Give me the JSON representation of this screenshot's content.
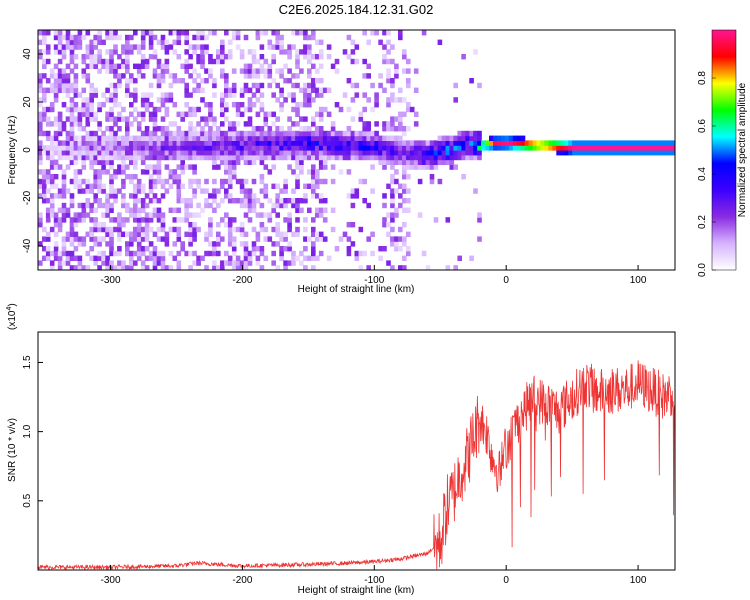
{
  "chart_data": [
    {
      "type": "heatmap",
      "title": "C2E6.2025.184.12.31.G02",
      "xlabel": "Height of straight line (km)",
      "ylabel": "Frequency (Hz)",
      "xlim": [
        -355,
        128
      ],
      "ylim": [
        -50,
        50
      ],
      "x_ticks": [
        -300,
        -200,
        -100,
        0,
        100
      ],
      "y_ticks": [
        -40,
        -20,
        0,
        20,
        40
      ],
      "colorbar": {
        "label": "Normalized spectral amplitude",
        "range": [
          0,
          1
        ],
        "ticks": [
          "0.0",
          "0.2",
          "0.4",
          "0.6",
          "0.8"
        ],
        "colormap": [
          "#ffffff",
          "#d6b3ff",
          "#8a2be2",
          "#3b00ff",
          "#0000ff",
          "#00ffff",
          "#00ff00",
          "#ffff00",
          "#ff0000",
          "#ff1493"
        ]
      },
      "ridge": {
        "x": [
          -355,
          -260,
          -200,
          -150,
          -100,
          -80,
          -60,
          -40,
          -30,
          -20,
          -10,
          0,
          50,
          100,
          128
        ],
        "frequency": [
          0,
          0,
          1,
          2,
          0,
          -2,
          -3,
          0,
          2,
          1,
          2,
          2,
          0,
          0,
          0
        ],
        "amplitude": [
          0.05,
          0.25,
          0.35,
          0.4,
          0.4,
          0.3,
          0.45,
          0.5,
          0.4,
          0.75,
          0.95,
          1.0,
          1.0,
          1.0,
          1.0
        ]
      },
      "grid": false
    },
    {
      "type": "line",
      "xlabel": "Height of straight line (km)",
      "ylabel": "SNR (10 * v/v)",
      "y_multiplier": "(x10^4)",
      "y_multiplier_base": "(x10",
      "y_multiplier_exp": "4",
      "y_multiplier_close": ")",
      "xlim": [
        -355,
        128
      ],
      "ylim": [
        0,
        1.72
      ],
      "x_ticks": [
        -300,
        -200,
        -100,
        0,
        100
      ],
      "y_ticks": [
        0.5,
        1.0,
        1.5
      ],
      "y_tick_labels": [
        "0.5",
        "1.0",
        "1.5"
      ],
      "series": [
        {
          "color": "#ee3333",
          "x": [
            -355,
            -300,
            -250,
            -235,
            -200,
            -150,
            -120,
            -100,
            -80,
            -60,
            -50,
            -45,
            -40,
            -35,
            -30,
            -25,
            -20,
            -15,
            -10,
            -5,
            0,
            10,
            20,
            30,
            40,
            50,
            60,
            70,
            80,
            90,
            100,
            110,
            120,
            128
          ],
          "y": [
            0.02,
            0.02,
            0.03,
            0.05,
            0.03,
            0.04,
            0.05,
            0.06,
            0.08,
            0.12,
            0.2,
            0.45,
            0.55,
            0.7,
            0.8,
            0.95,
            1.1,
            1.0,
            0.8,
            0.7,
            0.9,
            1.1,
            1.25,
            1.2,
            1.15,
            1.25,
            1.35,
            1.28,
            1.3,
            1.3,
            1.35,
            1.3,
            1.25,
            1.3
          ]
        }
      ],
      "grid": false
    }
  ]
}
